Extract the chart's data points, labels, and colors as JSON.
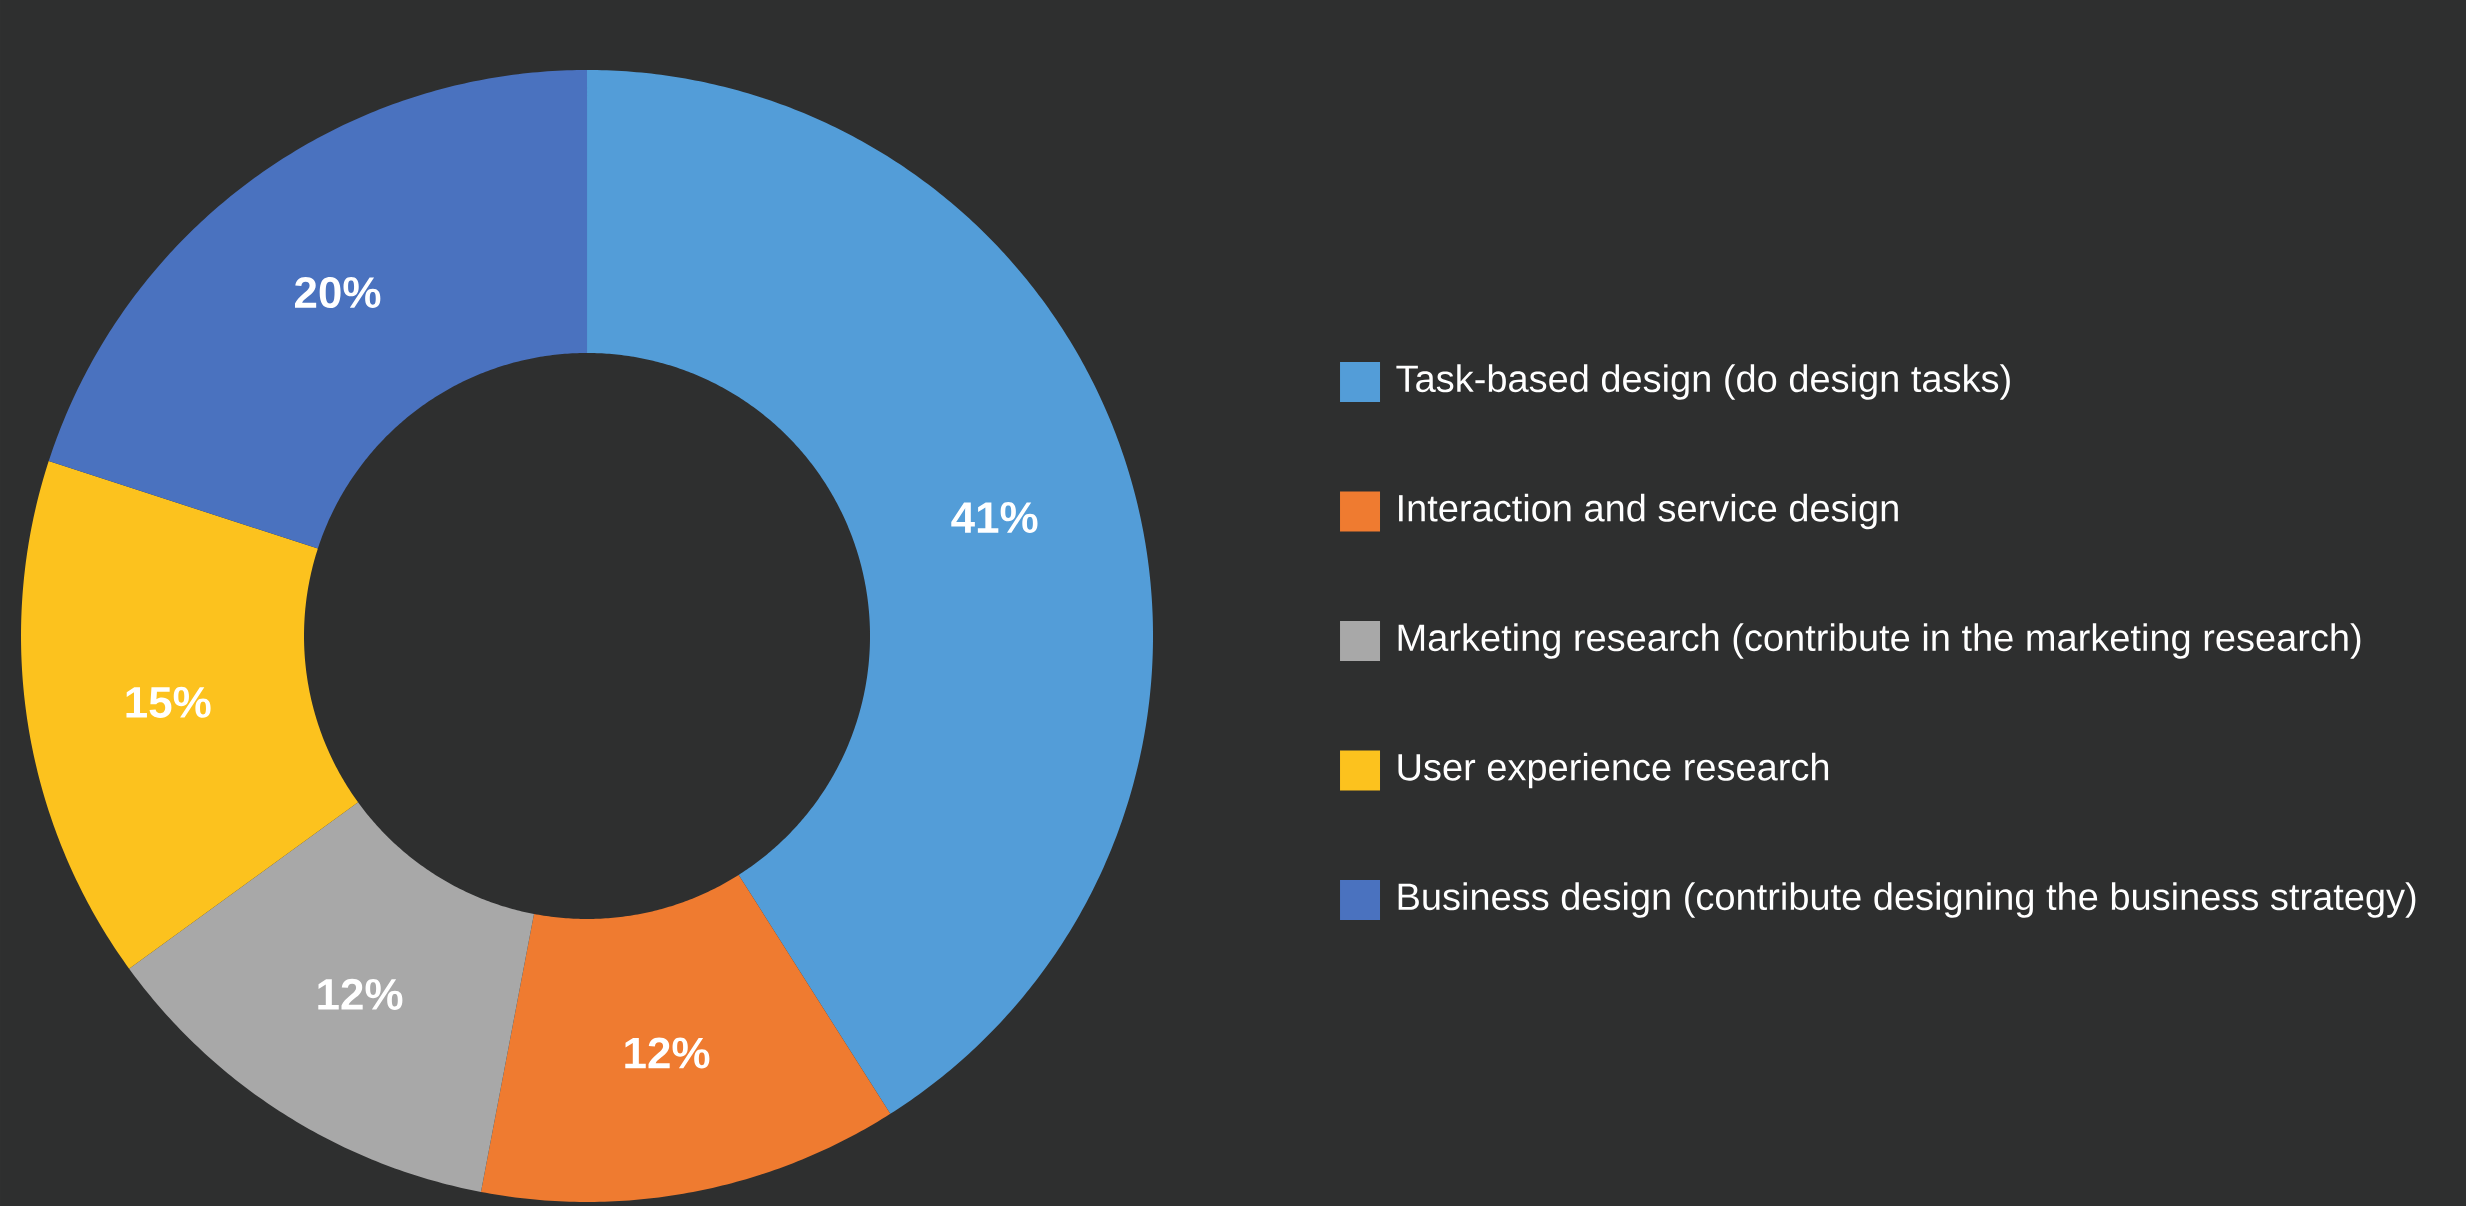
{
  "chart_data": {
    "type": "donut",
    "categories": [
      "Task-based design (do design tasks)",
      "Interaction and service design",
      "Marketing research (contribute in the marketing research)",
      "User experience research",
      "Business design (contribute designing the business strategy)"
    ],
    "values": [
      41,
      12,
      12,
      15,
      20
    ],
    "colors": [
      "#539dd8",
      "#ef7b30",
      "#a8a8a8",
      "#fcc21e",
      "#4a72bf"
    ],
    "value_labels": [
      "41%",
      "12%",
      "12%",
      "15%",
      "20%"
    ],
    "legend": "right"
  }
}
